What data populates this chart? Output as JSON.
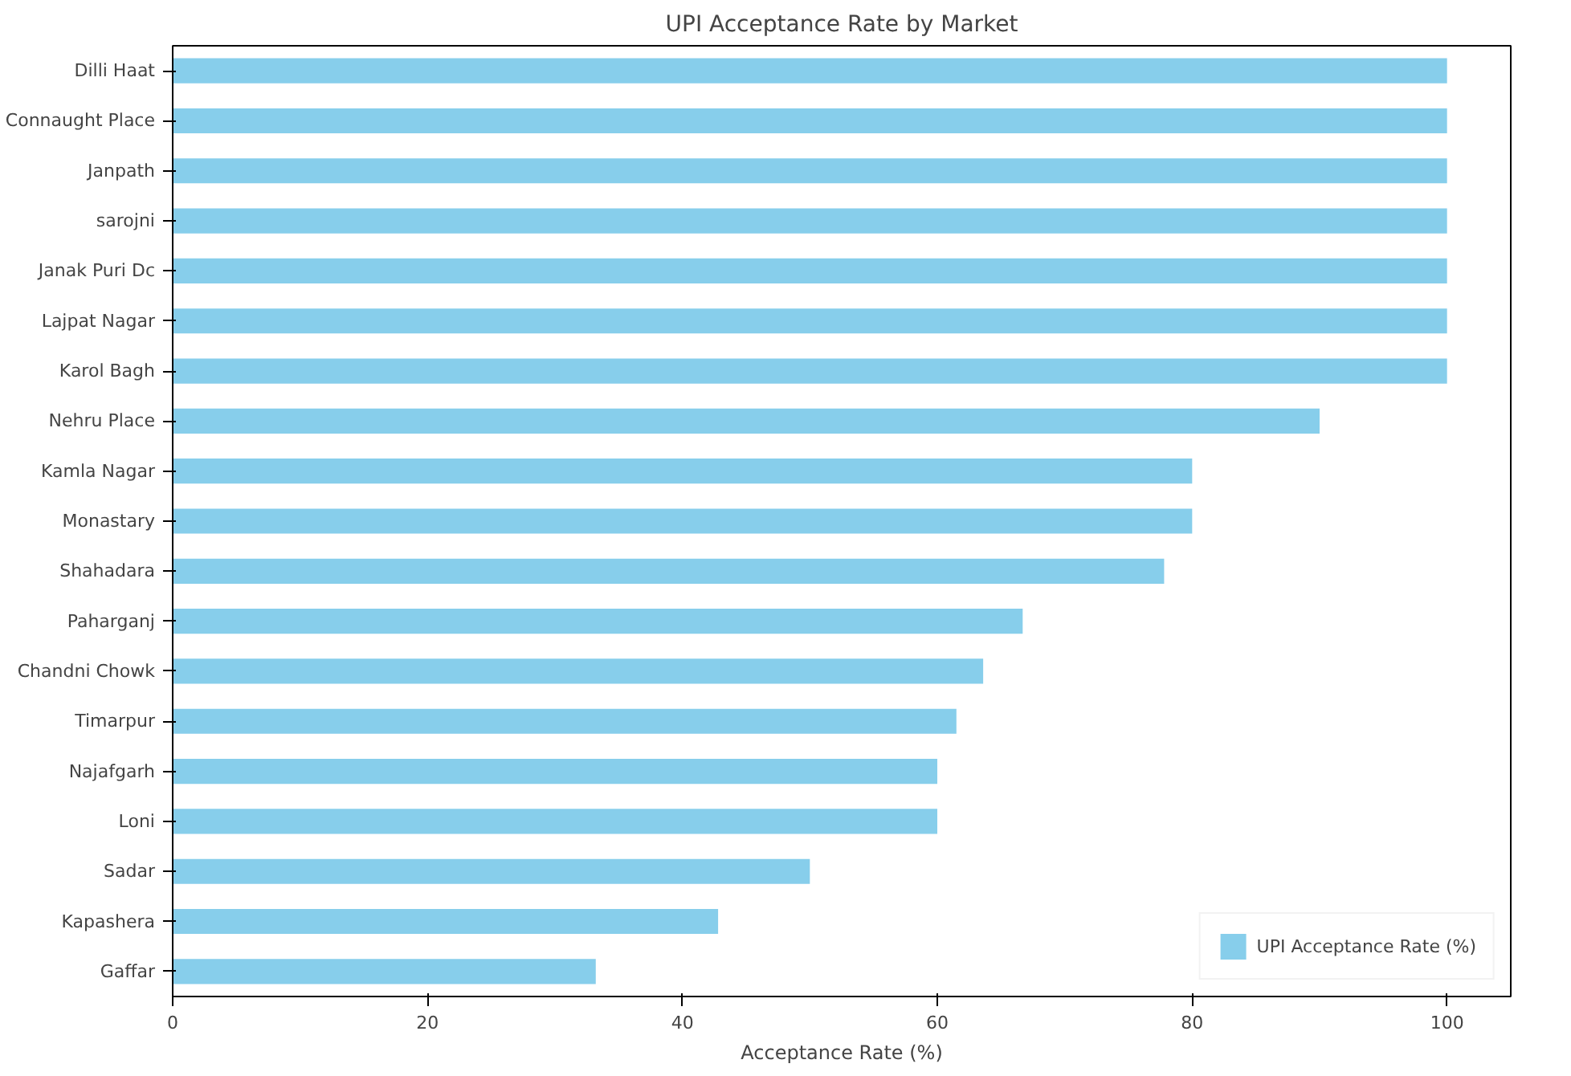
{
  "chart_data": {
    "type": "bar",
    "orientation": "horizontal",
    "title": "UPI Acceptance Rate by Market",
    "xlabel": "Acceptance Rate (%)",
    "categories": [
      "Dilli Haat",
      "Connaught Place",
      "Janpath",
      "sarojni",
      "Janak Puri Dc",
      "Lajpat Nagar",
      "Karol Bagh",
      "Nehru Place",
      "Kamla Nagar",
      "Monastary",
      "Shahadara",
      "Paharganj",
      "Chandni Chowk",
      "Timarpur",
      "Najafgarh",
      "Loni",
      "Sadar",
      "Kapashera",
      "Gaffar"
    ],
    "series": [
      {
        "name": "UPI Acceptance Rate (%)",
        "color": "#87ceeb",
        "values": [
          100,
          100,
          100,
          100,
          100,
          100,
          100,
          90,
          80,
          80,
          77.8,
          66.7,
          63.6,
          61.5,
          60,
          60,
          50,
          42.8,
          33.2
        ]
      }
    ],
    "xlim": [
      0,
      105
    ],
    "xticks": [
      0,
      20,
      40,
      60,
      80,
      100
    ],
    "grid": false,
    "legend": "bottom right"
  }
}
